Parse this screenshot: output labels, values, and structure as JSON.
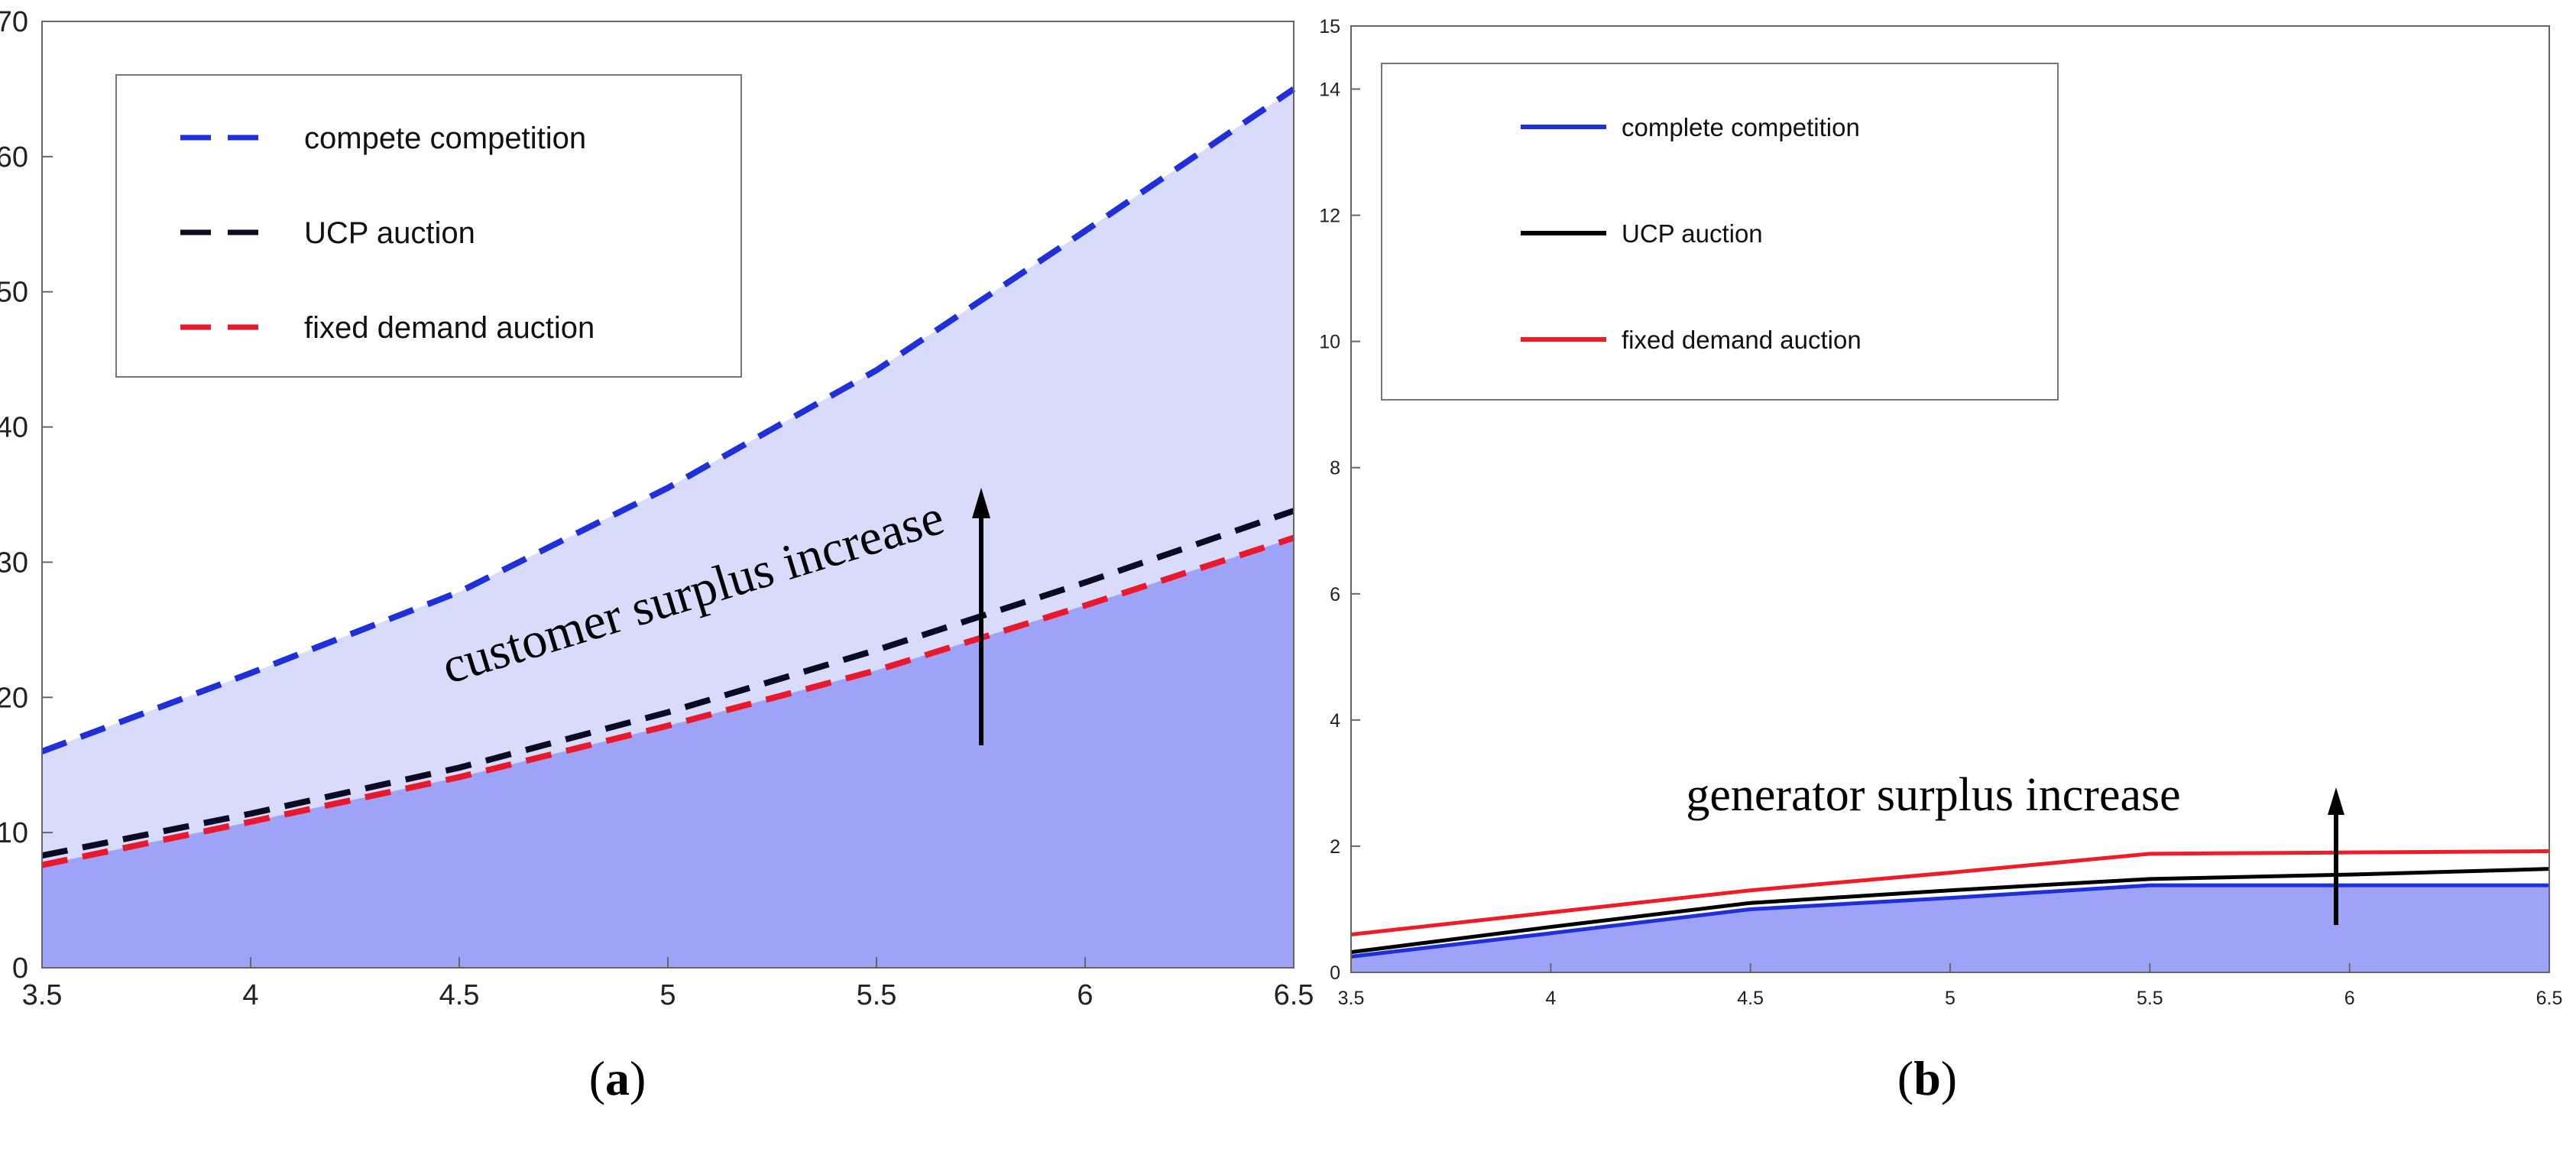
{
  "chart_data": [
    {
      "type": "line",
      "caption": "a",
      "x": [
        3.5,
        4,
        4.5,
        5,
        5.5,
        6,
        6.5
      ],
      "xticks": [
        "3.5",
        "4",
        "4.5",
        "5",
        "5.5",
        "6",
        "6.5"
      ],
      "yticks": [
        "0",
        "10",
        "20",
        "30",
        "40",
        "50",
        "60",
        "70"
      ],
      "xlim": [
        3.5,
        6.5
      ],
      "ylim": [
        0,
        70
      ],
      "series": [
        {
          "name": "compete competition",
          "color": "#1f2fd9",
          "values": [
            16,
            21.8,
            27.8,
            35.5,
            44.2,
            54.5,
            65
          ]
        },
        {
          "name": "UCP auction",
          "color": "#0a0a23",
          "values": [
            8.3,
            11.4,
            14.8,
            18.9,
            23.5,
            28.5,
            33.8
          ]
        },
        {
          "name": "fixed demand auction",
          "color": "#e8192c",
          "values": [
            7.6,
            10.8,
            14.1,
            17.9,
            22.0,
            26.8,
            31.8
          ]
        }
      ],
      "fill_light": "#d9dbfb",
      "fill_dark": "#9fa3f7",
      "annotation": "customer surplus increase",
      "grid": false,
      "legend": "top-left"
    },
    {
      "type": "line",
      "caption": "b",
      "x": [
        3.5,
        4,
        4.5,
        5,
        5.5,
        6,
        6.5
      ],
      "xticks": [
        "3.5",
        "4",
        "4.5",
        "5",
        "5.5",
        "6",
        "6.5"
      ],
      "yticks": [
        "0",
        "2",
        "4",
        "6",
        "8",
        "10",
        "12",
        "14",
        "15"
      ],
      "xlim": [
        3.5,
        6.5
      ],
      "ylim": [
        0,
        15
      ],
      "series": [
        {
          "name": "complete competition",
          "color": "#1f2fd9",
          "values": [
            0.25,
            0.62,
            1.0,
            1.18,
            1.38,
            1.38,
            1.38
          ]
        },
        {
          "name": "UCP auction",
          "color": "#000000",
          "values": [
            0.32,
            0.72,
            1.1,
            1.3,
            1.48,
            1.55,
            1.64
          ]
        },
        {
          "name": "fixed demand auction",
          "color": "#ee1c24",
          "values": [
            0.6,
            0.95,
            1.3,
            1.58,
            1.88,
            1.9,
            1.92
          ]
        }
      ],
      "fill_light": "#d9dbfb",
      "fill_dark": "#9fa3f7",
      "annotation": "generator surplus increase",
      "grid": false,
      "legend": "top-left"
    }
  ]
}
